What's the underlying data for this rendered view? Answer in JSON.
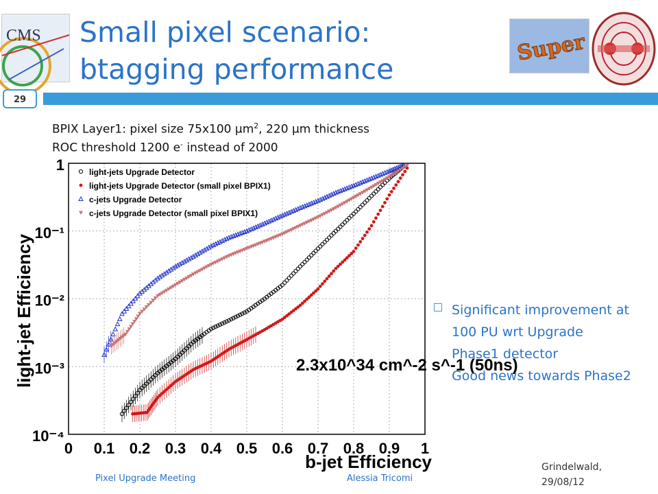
{
  "slide": {
    "title": "Small pixel scenario: btagging performance",
    "page_number": "29",
    "subtitle_line1_a": "BPIX Layer1: pixel size 75x100 ",
    "subtitle_mu": "μ",
    "subtitle_line1_b": "m",
    "subtitle_sup2": "2",
    "subtitle_line1_c": ", 220 ",
    "subtitle_line1_d": "m thickness",
    "subtitle_line2_a": "ROC threshold 1200 e",
    "subtitle_sup_minus": "-",
    "subtitle_line2_b": "  instead of 2000",
    "note": [
      "Significant improvement at",
      "100 PU wrt Upgrade",
      "Phase1 detector",
      "Good news towards Phase2"
    ],
    "footer_left": "Pixel Upgrade Meeting",
    "footer_center": "Alessia Tricomi",
    "date_line1": "Grindelwald,",
    "date_line2": "29/08/12",
    "logo_left": "CMS",
    "logo_right": "Super",
    "colors": {
      "accent": "#3a9bd9",
      "title": "#2b73c8"
    }
  },
  "chart_data": {
    "type": "scatter",
    "title": "",
    "xlabel": "b-jet Efficiency",
    "ylabel": "light-jet Efficiency",
    "xlim": [
      0,
      1
    ],
    "ylim": [
      0.0001,
      1
    ],
    "ylog": true,
    "grid": true,
    "legend_position": "top-left",
    "x_tick_labels": [
      "0",
      "0.1",
      "0.2",
      "0.3",
      "0.4",
      "0.5",
      "0.6",
      "0.7",
      "0.8",
      "0.9",
      "1"
    ],
    "y_tick_labels": [
      "10⁻⁴",
      "10⁻³",
      "10⁻²",
      "10⁻¹",
      "1"
    ],
    "annotation": "2.3x10^34 cm^-2 s^-1 (50ns)",
    "series": [
      {
        "name": "light-jets Upgrade Detector",
        "marker": "circle-open",
        "color": "#000000",
        "x": [
          0.15,
          0.2,
          0.25,
          0.3,
          0.35,
          0.4,
          0.45,
          0.5,
          0.55,
          0.6,
          0.65,
          0.7,
          0.75,
          0.8,
          0.85,
          0.9,
          0.94
        ],
        "y": [
          0.0002,
          0.00045,
          0.0008,
          0.0013,
          0.0023,
          0.0036,
          0.0048,
          0.0065,
          0.01,
          0.016,
          0.03,
          0.055,
          0.1,
          0.18,
          0.33,
          0.6,
          0.9
        ]
      },
      {
        "name": "light-jets Upgrade Detector (small pixel BPIX1)",
        "marker": "circle-filled",
        "color": "#d11818",
        "x": [
          0.18,
          0.22,
          0.25,
          0.3,
          0.35,
          0.4,
          0.45,
          0.5,
          0.55,
          0.6,
          0.65,
          0.7,
          0.75,
          0.8,
          0.85,
          0.9,
          0.95
        ],
        "y": [
          0.0002,
          0.00021,
          0.00035,
          0.0006,
          0.0009,
          0.0012,
          0.0018,
          0.0025,
          0.0035,
          0.005,
          0.008,
          0.014,
          0.028,
          0.05,
          0.12,
          0.34,
          0.85
        ]
      },
      {
        "name": "c-jets Upgrade Detector",
        "marker": "triangle-up",
        "color": "#1c2fc9",
        "x": [
          0.1,
          0.15,
          0.2,
          0.25,
          0.3,
          0.35,
          0.4,
          0.45,
          0.5,
          0.55,
          0.6,
          0.65,
          0.7,
          0.75,
          0.8,
          0.85,
          0.9,
          0.94
        ],
        "y": [
          0.0015,
          0.006,
          0.012,
          0.02,
          0.03,
          0.042,
          0.06,
          0.08,
          0.1,
          0.13,
          0.17,
          0.22,
          0.28,
          0.37,
          0.47,
          0.6,
          0.77,
          0.94
        ]
      },
      {
        "name": "c-jets Upgrade Detector (small pixel BPIX1)",
        "marker": "triangle-down",
        "color": "#c87474",
        "x": [
          0.12,
          0.16,
          0.2,
          0.25,
          0.3,
          0.35,
          0.4,
          0.45,
          0.5,
          0.55,
          0.6,
          0.65,
          0.7,
          0.75,
          0.8,
          0.85,
          0.9,
          0.95
        ],
        "y": [
          0.002,
          0.003,
          0.006,
          0.011,
          0.016,
          0.023,
          0.032,
          0.043,
          0.055,
          0.07,
          0.09,
          0.12,
          0.16,
          0.22,
          0.31,
          0.44,
          0.63,
          0.93
        ]
      }
    ]
  }
}
